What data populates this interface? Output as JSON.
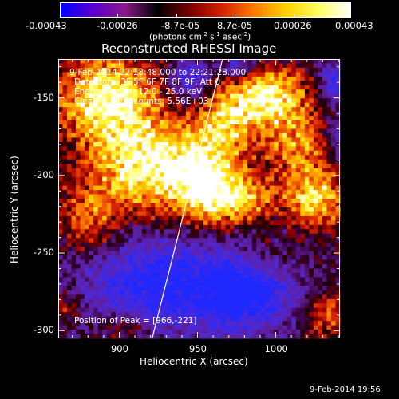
{
  "colorbar": {
    "labels": [
      "-0.00043",
      "-0.00026",
      "-8.7e-05",
      "8.7e-05",
      "0.00026",
      "0.00043"
    ],
    "values": [
      -0.00043,
      -0.00026,
      -8.7e-05,
      8.7e-05,
      0.00026,
      0.00043
    ],
    "range": [
      -0.00043,
      0.00043
    ],
    "units_main": "(photons cm",
    "units_exp1": "-2",
    "units_mid": " s",
    "units_exp2": "-1",
    "units_end": " asec",
    "units_exp3": "-2",
    "units_close": ")",
    "gradient_colors": [
      "#0000ff",
      "#5a00d0",
      "#8a1a8a",
      "#000000",
      "#7a0000",
      "#d42000",
      "#ff7a00",
      "#ffd000",
      "#ffff60",
      "#ffffff"
    ]
  },
  "info": {
    "time_range": "9-Feb-2014 22:18:48.000 to 22:21:28.000",
    "detectors": "Detectors: 3F 5F 6F 7F 8F 9F, Att 0",
    "energy": "Energy Range: 12.0 - 25.0 keV",
    "method": "Clean     Total counts: 5.56E+03",
    "peak": "Position of Peak = [966,-221]"
  },
  "footer_timestamp": "9-Feb-2014 19:56",
  "chart_data": {
    "type": "heatmap",
    "title": "Reconstructed RHESSI Image",
    "xlabel": "Heliocentric X (arcsec)",
    "ylabel": "Heliocentric Y (arcsec)",
    "xlim": [
      861,
      1041
    ],
    "ylim": [
      -305,
      -125
    ],
    "x_ticks": [
      900,
      950,
      1000
    ],
    "y_ticks": [
      -150,
      -200,
      -250,
      -300
    ],
    "x_tick_labels": [
      "900",
      "950",
      "1000"
    ],
    "y_tick_labels": [
      "-150",
      "-200",
      "-250",
      "-300"
    ],
    "limb_line": [
      [
        921,
        -305
      ],
      [
        966,
        -125
      ]
    ],
    "peak": [
      966,
      -221
    ],
    "emission_regions": [
      {
        "x": 892,
        "y": -150,
        "sx": 22,
        "sy": 20,
        "amp": 1.0
      },
      {
        "x": 915,
        "y": -195,
        "sx": 22,
        "sy": 22,
        "amp": 1.0
      },
      {
        "x": 952,
        "y": -200,
        "sx": 14,
        "sy": 22,
        "amp": 0.9
      },
      {
        "x": 975,
        "y": -215,
        "sx": 16,
        "sy": 12,
        "amp": 0.85
      },
      {
        "x": 996,
        "y": -150,
        "sx": 16,
        "sy": 14,
        "amp": 0.95
      },
      {
        "x": 970,
        "y": -165,
        "sx": 12,
        "sy": 18,
        "amp": 0.65
      },
      {
        "x": 1025,
        "y": -215,
        "sx": 14,
        "sy": 14,
        "amp": 0.8
      },
      {
        "x": 1015,
        "y": -180,
        "sx": 16,
        "sy": 16,
        "amp": 0.55
      },
      {
        "x": 880,
        "y": -230,
        "sx": 14,
        "sy": 16,
        "amp": 0.55
      },
      {
        "x": 992,
        "y": -255,
        "sx": 12,
        "sy": 10,
        "amp": 0.35
      },
      {
        "x": 1032,
        "y": -290,
        "sx": 10,
        "sy": 10,
        "amp": 0.5
      },
      {
        "x": 905,
        "y": -298,
        "sx": 12,
        "sy": 6,
        "amp": 0.5
      },
      {
        "x": 866,
        "y": -285,
        "sx": 8,
        "sy": 8,
        "amp": 0.45
      }
    ],
    "negative_regions": [
      {
        "x": 928,
        "y": -270,
        "sx": 38,
        "sy": 24,
        "amp": 1.0
      },
      {
        "x": 985,
        "y": -275,
        "sx": 20,
        "sy": 18,
        "amp": 0.9
      },
      {
        "x": 945,
        "y": -138,
        "sx": 8,
        "sy": 10,
        "amp": 0.8
      },
      {
        "x": 975,
        "y": -130,
        "sx": 8,
        "sy": 6,
        "amp": 0.7
      },
      {
        "x": 1037,
        "y": -140,
        "sx": 6,
        "sy": 8,
        "amp": 0.8
      },
      {
        "x": 1040,
        "y": -175,
        "sx": 6,
        "sy": 12,
        "amp": 0.6
      }
    ]
  }
}
